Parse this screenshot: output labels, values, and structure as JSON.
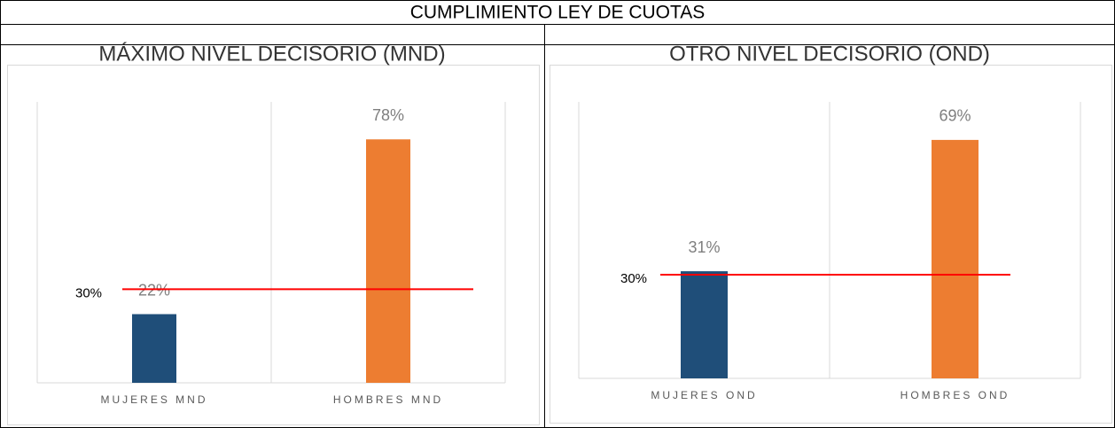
{
  "title": "CUMPLIMIENTO LEY DE CUOTAS",
  "chart_data": [
    {
      "type": "bar",
      "title": "MÁXIMO NIVEL DECISORIO (MND)",
      "categories": [
        "MUJERES MND",
        "HOMBRES MND"
      ],
      "values": [
        22,
        78
      ],
      "value_labels": [
        "22%",
        "78%"
      ],
      "colors": [
        "#1f4e79",
        "#ed7d31"
      ],
      "ylim": [
        0,
        90
      ],
      "reference_line": {
        "value": 30,
        "label": "30%",
        "color": "#ff0000"
      }
    },
    {
      "type": "bar",
      "title": "OTRO NIVEL DECISORIO (OND)",
      "categories": [
        "MUJERES OND",
        "HOMBRES OND"
      ],
      "values": [
        31,
        69
      ],
      "value_labels": [
        "31%",
        "69%"
      ],
      "colors": [
        "#1f4e79",
        "#ed7d31"
      ],
      "ylim": [
        0,
        80
      ],
      "reference_line": {
        "value": 30,
        "label": "30%",
        "color": "#ff0000"
      }
    }
  ]
}
